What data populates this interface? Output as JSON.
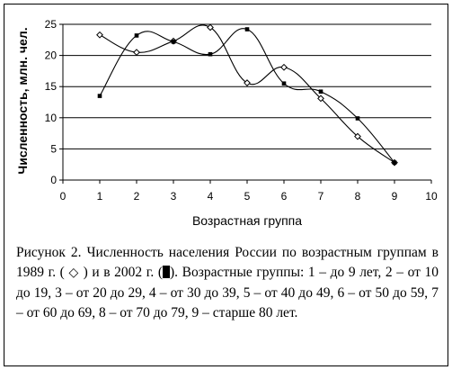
{
  "chart_data": {
    "type": "line",
    "ylabel": "Численность, млн. чел.",
    "xlabel": "Возрастная группа",
    "xlim": [
      0,
      10
    ],
    "ylim": [
      0,
      25
    ],
    "xticks": [
      0,
      1,
      2,
      3,
      4,
      5,
      6,
      7,
      8,
      9,
      10
    ],
    "yticks": [
      0,
      5,
      10,
      15,
      20,
      25
    ],
    "grid": "horizontal",
    "series": [
      {
        "marker": "diamond-open",
        "x": [
          1,
          2,
          3,
          4,
          5,
          6,
          7,
          8,
          9
        ],
        "values": [
          23.3,
          20.5,
          22.3,
          24.5,
          15.6,
          18.1,
          13.1,
          7.0,
          2.8
        ]
      },
      {
        "marker": "square-filled",
        "x": [
          1,
          2,
          3,
          4,
          5,
          6,
          7,
          8,
          9
        ],
        "values": [
          13.5,
          23.2,
          22.2,
          20.2,
          24.2,
          15.5,
          14.2,
          9.9,
          2.8
        ]
      }
    ]
  },
  "caption": {
    "part1": "Рисунок 2. Численность населения России по возрастным группам в 1989 г. (",
    "glyph1": "◇",
    "part2": ") и в 2002 г. (",
    "part3": "). Возрастные группы: 1 – до 9 лет, 2 – от 10 до 19, 3 – от 20 до 29, 4 – от 30 до 39, 5 – от 40 до 49, 6 – от 50 до 59, 7 – от 60 до 69, 8 – от 70 до 79, 9 – старше 80 лет."
  },
  "colors": {
    "line": "#000000",
    "grid": "#000000"
  }
}
